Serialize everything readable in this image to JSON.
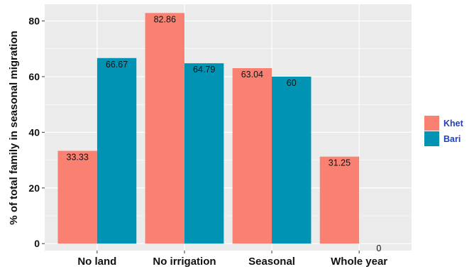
{
  "chart_data": {
    "type": "bar",
    "title": "",
    "xlabel": "",
    "ylabel": "% of total family in seasonal migration",
    "categories": [
      "No land",
      "No irrigation",
      "Seasonal",
      "Whole year"
    ],
    "series": [
      {
        "name": "Khet",
        "color": "#FA8072",
        "values": [
          33.33,
          82.86,
          63.04,
          31.25
        ],
        "labels": [
          "33.33",
          "82.86",
          "63.04",
          "31.25"
        ]
      },
      {
        "name": "Bari",
        "color": "#0093B4",
        "values": [
          66.67,
          64.79,
          60,
          0
        ],
        "labels": [
          "66.67",
          "64.79",
          "60",
          "0"
        ]
      }
    ],
    "yticks": [
      "0",
      "20",
      "40",
      "60",
      "80"
    ],
    "ylim": [
      -2.5,
      86
    ],
    "grid": true,
    "legend_position": "right",
    "legend_text_color": "#1F3FBF",
    "panel_color": "#EBEBEB"
  }
}
